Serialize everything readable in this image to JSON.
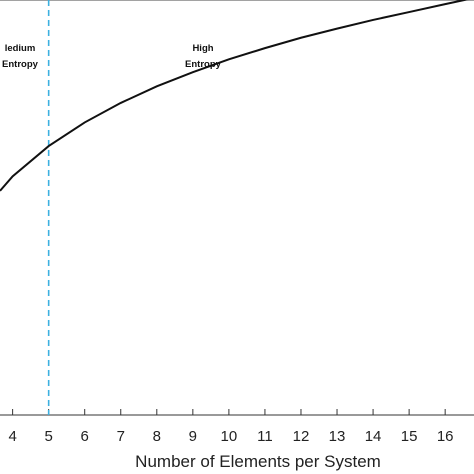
{
  "chart_data": {
    "type": "line",
    "xlabel": "Number of Elements per System",
    "ylabel": "",
    "title": "",
    "xlim": [
      3.65,
      16.8
    ],
    "ylim": [
      0,
      1
    ],
    "x_ticks": [
      4,
      5,
      6,
      7,
      8,
      9,
      10,
      11,
      12,
      13,
      14,
      15,
      16
    ],
    "y_ticks": [],
    "grid": false,
    "series": [
      {
        "color": "#111111",
        "points": [
          [
            3.65,
            0.54
          ],
          [
            4,
            0.575
          ],
          [
            5,
            0.648
          ],
          [
            6,
            0.705
          ],
          [
            7,
            0.752
          ],
          [
            8,
            0.792
          ],
          [
            9,
            0.826
          ],
          [
            10,
            0.857
          ],
          [
            11,
            0.884
          ],
          [
            12,
            0.909
          ],
          [
            13,
            0.931
          ],
          [
            14,
            0.952
          ],
          [
            15,
            0.971
          ],
          [
            16,
            0.99
          ],
          [
            16.8,
            1.005
          ]
        ]
      }
    ],
    "reference_lines": [
      {
        "orientation": "vertical",
        "x": 5,
        "style": "dashed",
        "color": "#3cb0e0"
      }
    ],
    "annotations": [
      {
        "lines": [
          "ledium",
          "Entropy"
        ]
      },
      {
        "lines": [
          "High",
          "Entropy"
        ]
      }
    ]
  }
}
